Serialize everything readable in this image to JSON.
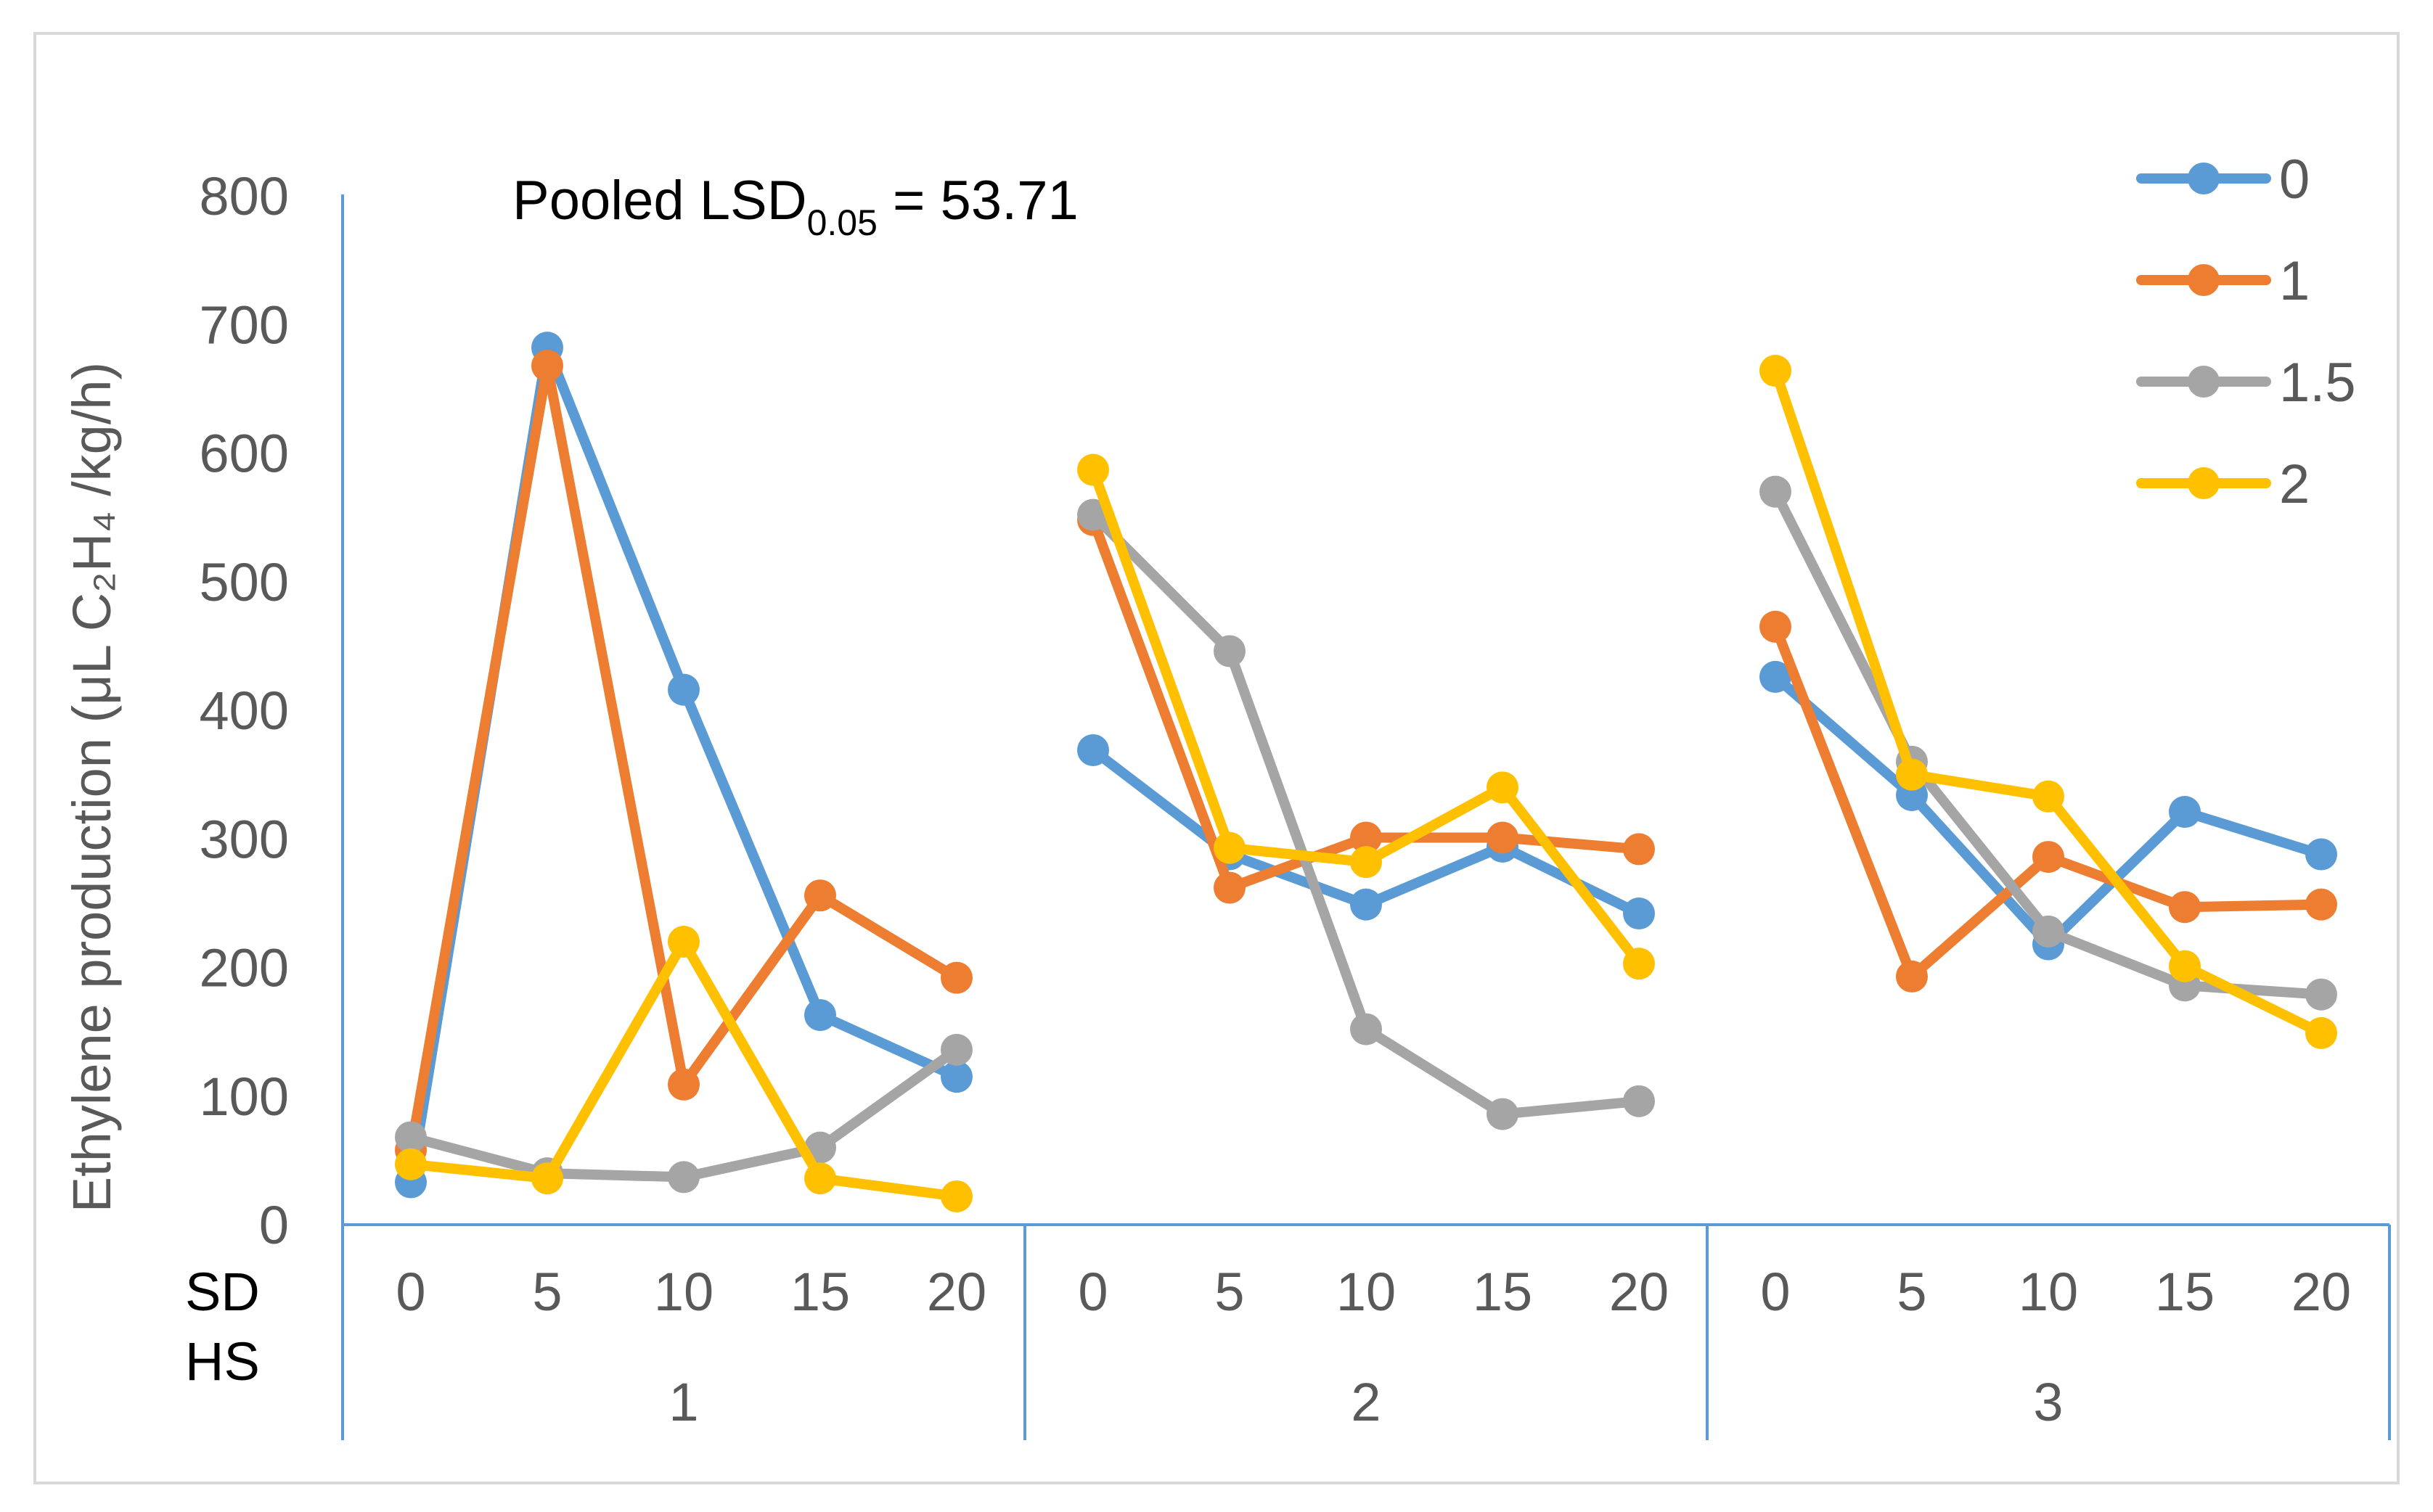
{
  "chart_data": {
    "type": "line",
    "ylabel": "Ethylene production (μL C₂H₄ /kg/h)",
    "ylim": [
      0,
      800
    ],
    "yticks": [
      0,
      100,
      200,
      300,
      400,
      500,
      600,
      700,
      800
    ],
    "annotation": {
      "text": "Pooled LSD",
      "subscript": "0.05",
      "value_text": " = 53.71"
    },
    "row_labels": {
      "inner": "SD",
      "outer": "HS"
    },
    "groups": [
      "1",
      "2",
      "3"
    ],
    "sd_levels": [
      "0",
      "5",
      "10",
      "15",
      "20"
    ],
    "legend_position": "top-right",
    "series": [
      {
        "name": "0",
        "color": "#5B9BD5",
        "values": [
          [
            33,
            682,
            416,
            163,
            115
          ],
          [
            369,
            288,
            249,
            294,
            242
          ],
          [
            426,
            334,
            218,
            321,
            288
          ]
        ]
      },
      {
        "name": "1",
        "color": "#ED7D31",
        "values": [
          [
            58,
            668,
            109,
            256,
            192
          ],
          [
            548,
            262,
            301,
            301,
            292
          ],
          [
            465,
            193,
            286,
            247,
            249
          ]
        ]
      },
      {
        "name": "1.5",
        "color": "#A5A5A5",
        "values": [
          [
            68,
            40,
            37,
            60,
            136
          ],
          [
            552,
            446,
            152,
            86,
            96
          ],
          [
            570,
            360,
            228,
            186,
            179
          ]
        ]
      },
      {
        "name": "2",
        "color": "#FFC000",
        "values": [
          [
            47,
            36,
            220,
            36,
            22
          ],
          [
            587,
            293,
            282,
            340,
            203
          ],
          [
            664,
            350,
            333,
            201,
            149
          ]
        ]
      }
    ]
  }
}
